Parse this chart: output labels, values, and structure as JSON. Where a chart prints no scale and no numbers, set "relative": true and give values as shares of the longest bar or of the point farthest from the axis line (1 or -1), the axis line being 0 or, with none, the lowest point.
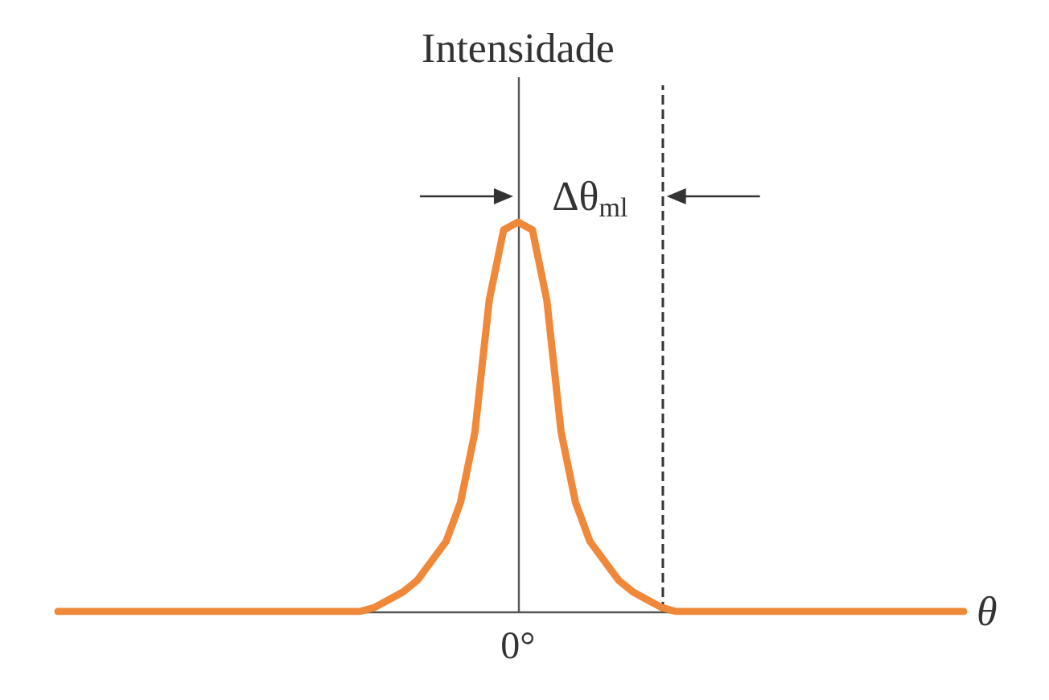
{
  "chart_data": {
    "type": "line",
    "relative": true,
    "ylabel": "Intensidade",
    "xlabel": "θ",
    "annotations": [
      "Δθ$_{ml}$",
      "0°"
    ],
    "grid": false,
    "marker": "none",
    "line_style": "solid",
    "categories": [
      null,
      null,
      null,
      null,
      null,
      null,
      null,
      null,
      null,
      null,
      null,
      null,
      null,
      null,
      null,
      null,
      null,
      null,
      null,
      null,
      null,
      null,
      null,
      null,
      null,
      null,
      null,
      null,
      null,
      null,
      null,
      null,
      null,
      null,
      null,
      null,
      null,
      null,
      null,
      null,
      null,
      null,
      null,
      null,
      null,
      null,
      null,
      null,
      null,
      null,
      null,
      null,
      null,
      null,
      null,
      null,
      null,
      null,
      null,
      null,
      null,
      null,
      null,
      null
    ],
    "series": [
      {
        "color": "#f0883a",
        "values": [
          0,
          0,
          0,
          0,
          0,
          0,
          0,
          0,
          0,
          0,
          0,
          0,
          0,
          0,
          0,
          0,
          0,
          0,
          0,
          0,
          0,
          0,
          0.01,
          0.03,
          0.05,
          0.08,
          0.13,
          0.18,
          0.28,
          0.46,
          0.8,
          0.98,
          1,
          0.98,
          0.8,
          0.46,
          0.28,
          0.18,
          0.13,
          0.08,
          0.05,
          0.03,
          0.01,
          0,
          0,
          0,
          0,
          0,
          0,
          0,
          0,
          0,
          0,
          0,
          0,
          0,
          0,
          0,
          0,
          0,
          0,
          0,
          0,
          0
        ]
      }
    ]
  }
}
